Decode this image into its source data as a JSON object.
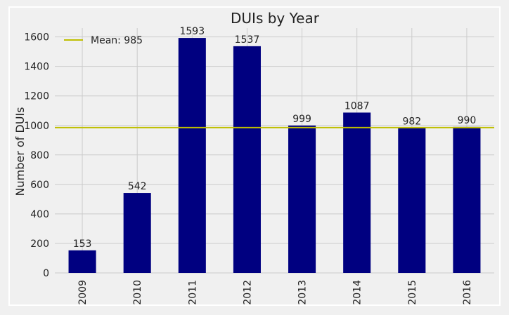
{
  "chart_data": {
    "type": "bar",
    "title": "DUIs by Year",
    "xlabel": "",
    "ylabel": "Number of DUIs",
    "categories": [
      "2009",
      "2010",
      "2011",
      "2012",
      "2013",
      "2014",
      "2015",
      "2016"
    ],
    "values": [
      153,
      542,
      1593,
      1537,
      999,
      1087,
      982,
      990
    ],
    "data_labels": [
      "153",
      "542",
      "1593",
      "1537",
      "999",
      "1087",
      "982",
      "990"
    ],
    "ylim": [
      0,
      1660
    ],
    "yticks": [
      0,
      200,
      400,
      600,
      800,
      1000,
      1200,
      1400,
      1600
    ],
    "grid": true,
    "legend_position": "top-left",
    "mean_line": {
      "value": 985,
      "label": "Mean: 985"
    },
    "colors": {
      "bar": "#000080",
      "mean_line": "#bfbf00",
      "grid": "#cbcbcb",
      "background": "#f0f0f0",
      "text": "#222222"
    }
  }
}
